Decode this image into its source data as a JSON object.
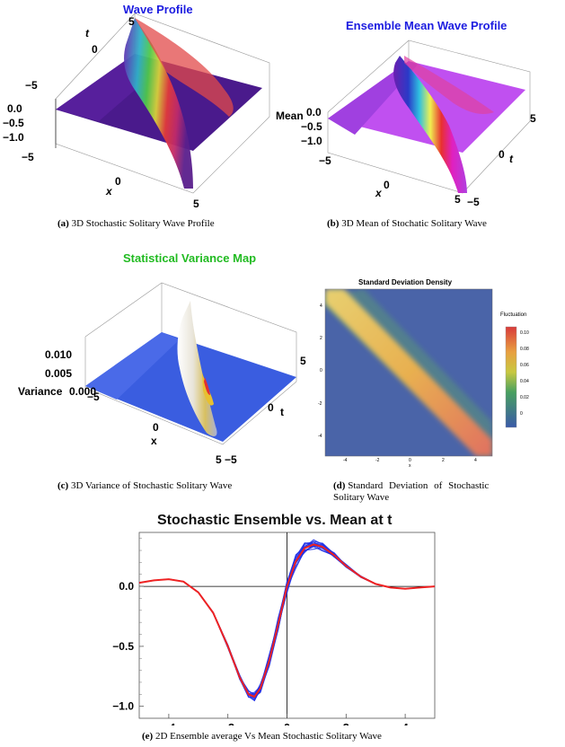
{
  "panels": {
    "a": {
      "title": "Wave Profile",
      "caption_label": "(a)",
      "caption_text": "3D Stochastic Solitary Wave Profile",
      "z_ticks": [
        "0.0",
        "−0.5",
        "−1.0"
      ],
      "x_ticks": [
        "−5",
        "0",
        "5"
      ],
      "t_ticks": [
        "5",
        "0",
        "−5"
      ],
      "x_label": "x",
      "t_label": "t"
    },
    "b": {
      "title": "Ensemble Mean Wave Profile",
      "caption_label": "(b)",
      "caption_text": "3D Mean of Stochatic Solitary Wave",
      "z_label": "Mean",
      "z_ticks": [
        "0.0",
        "−0.5",
        "−1.0"
      ],
      "x_ticks": [
        "−5",
        "0",
        "5"
      ],
      "t_ticks": [
        "5",
        "0",
        "−5"
      ],
      "x_label": "x",
      "t_label": "t"
    },
    "c": {
      "title": "Statistical Variance Map",
      "caption_label": "(c)",
      "caption_text": "3D Variance of Stochastic Solitary Wave",
      "z_label": "Variance",
      "z_ticks": [
        "0.010",
        "0.005",
        "0.000"
      ],
      "x_ticks": [
        "−5",
        "0",
        "5"
      ],
      "t_ticks": [
        "5",
        "0",
        "−5"
      ],
      "x_label": "x",
      "t_label": "t"
    },
    "d": {
      "title": "Standard Deviation Density",
      "caption_label": "(d)",
      "caption_line1": "Standard Deviation of Stochastic",
      "caption_line2": "Solitary Wave",
      "legend_title": "Fluctuation",
      "legend_ticks": [
        "0.10",
        "0.08",
        "0.06",
        "0.04",
        "0.02",
        "0"
      ],
      "x_ticks": [
        "-4",
        "-2",
        "0",
        "2",
        "4"
      ],
      "y_ticks": [
        "4",
        "2",
        "0",
        "-2",
        "-4"
      ],
      "x_label": "x"
    },
    "e": {
      "title": "Stochastic Ensemble vs. Mean at t",
      "caption_label": "(e)",
      "caption_text": "2D Ensemble average Vs Mean Stochastic Solitary Wave"
    }
  },
  "colors": {
    "title_blue": "#1c1ce0",
    "title_green": "#22bb22",
    "ensemble_blue": "#1f2fe8",
    "mean_red": "#ee2222",
    "density_bg": "#4a64a8"
  },
  "chart_data": {
    "type": "line",
    "title": "Stochastic Ensemble vs. Mean at t",
    "xlim": [
      -5,
      5
    ],
    "ylim": [
      -1.1,
      0.45
    ],
    "x_ticks": [
      -4,
      -2,
      0,
      2,
      4
    ],
    "x_tick_labels": [
      "−4",
      "−2",
      "0",
      "2",
      "4"
    ],
    "y_ticks": [
      0.0,
      -0.5,
      -1.0
    ],
    "y_tick_labels": [
      "0.0",
      "−0.5",
      "−1.0"
    ],
    "grid": false,
    "x": [
      -5,
      -4.5,
      -4,
      -3.5,
      -3,
      -2.5,
      -2,
      -1.6,
      -1.3,
      -1.1,
      -0.9,
      -0.6,
      -0.3,
      0,
      0.3,
      0.6,
      0.9,
      1.2,
      1.6,
      2,
      2.5,
      3,
      3.5,
      4,
      4.5,
      5
    ],
    "series": [
      {
        "values": [
          0.03,
          0.05,
          0.06,
          0.04,
          -0.05,
          -0.22,
          -0.5,
          -0.76,
          -0.9,
          -0.92,
          -0.85,
          -0.62,
          -0.32,
          0.0,
          0.21,
          0.32,
          0.35,
          0.33,
          0.26,
          0.17,
          0.08,
          0.02,
          -0.01,
          -0.02,
          -0.01,
          0.0
        ]
      }
    ]
  }
}
